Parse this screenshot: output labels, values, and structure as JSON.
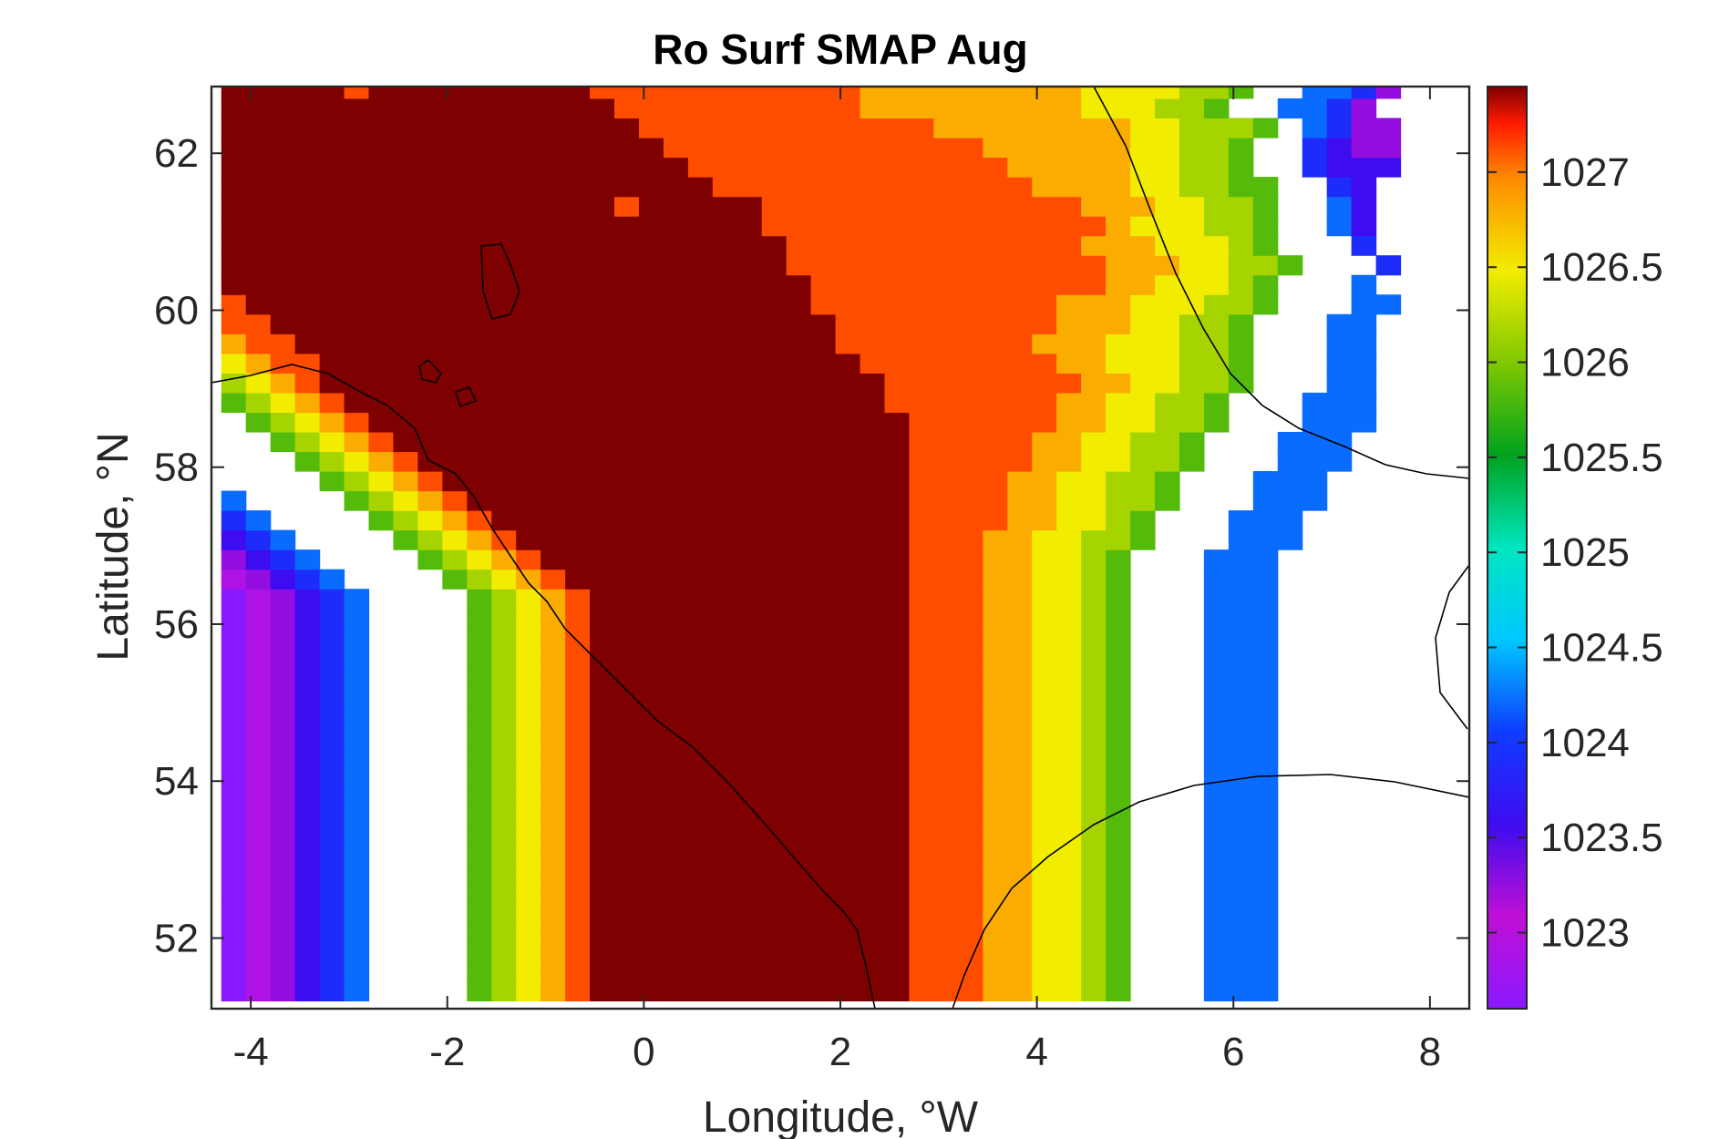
{
  "chart_data": {
    "type": "heatmap",
    "title": "Ro Surf SMAP Aug",
    "xlabel": "Longitude, °W",
    "ylabel": "Latitude, °N",
    "xlim": [
      -4.4,
      8.4
    ],
    "ylim": [
      51.1,
      62.85
    ],
    "xticks": [
      -4,
      -2,
      0,
      2,
      4,
      6,
      8
    ],
    "yticks": [
      52,
      54,
      56,
      58,
      60,
      62
    ],
    "colorbar": {
      "range": [
        1022.6,
        1027.45
      ],
      "ticks": [
        1023,
        1023.5,
        1024,
        1024.5,
        1025,
        1025.5,
        1026,
        1026.5,
        1027
      ]
    },
    "grid": {
      "lon_start": -4.3,
      "lat_start": 51.2,
      "step": 0.25
    },
    "gaps": "9876",
    "rows": [
      "FFFFFEFFFFFFFFFEEEEEEEEEEEDDDDDDDDDCCCCBBA765542",
      "FFFFFFFFFFFFFFFFEEEEEEEEEEDDDDDDDDDCCCBBA865542",
      "FFFFFFFFFFFFFFFFFEEEEEEEEEEEEDDDDDDDDCCBBBA85422",
      "FFFFFFFFFFFFFFFFFFEEEEEEEEEEEEEDDDDDDCCBBA964322",
      "FFFFFFFFFFFFFFFFFFFEEEEEEEEEEEEEDDDDDCCBBA964333",
      "FFFFFFFFFFFFFFFFFFFFEEEEEEEEEEEEEDDDDCCBBAA9643",
      "FFFFFFFFFFFFFFFFEFFFFFEEEEEEEEEEEEEDDDCCBBA9653",
      "FFFFFFFFFFFFFFFFFFFFFFEEEEEEEEEEEEEEDCCCBBA9653",
      "FFFFFFFFFFFFFFFFFFFFFFFEEEEEEEEEEEEDDDCCCBA9764",
      "FFFFFFFFFFFFFFFFFFFFFFFEEEEEEEEEEEEEDDDCCBBA9764",
      "FFFFFFFFFFFFFFFFFFFFFFFFEEEEEEEEEEEEDDCCCBA9765",
      "EFFFFFFFFFFFFFFFFFFFFFFFEEEEEEEEEEDDDCCCBBA97655",
      "EEFFFFFFFFFFFFFFFFFFFFFFFEEEEEEEEEDDDCCBBA97655",
      "DEEFFFFFFFFFFFFFFFFFFFFFFEEEEEEEEDDDCCCBBA97655",
      "CDEEFFFFFFFFFFFFFFFFFFFFFFEEEEEEEEDDCCCBBA976556",
      "BCDEFFFFFFFFFFFFFFFFFFFFFFFEEEEEEEEDDCCBBA986556",
      "ABCDEFFFFFFFFFFFFFFFFFFFFFFEEEEEEEDDCCBBA9865556",
      "9ABCDEFFFFFFFFFFFFFFFFFFFFFFEEEEEEDDCCBBA9865556",
      "89ABCDEFFFFFFFFFFFFFFFFFFFFFEEEEEDDCCBBA98655566",
      "789ABCDEFFFFFFFFFFFFFFFFFFFFEEEEEDDCCBBA98655566",
      "6789ABCDEFFFFFFFFFFFFFFFFFFFEEEEDDCCBBA986555666",
      "56789ABCDEFFFFFFFFFFFFFFFFFFEEEEDDCCBBA9865556666",
      "456789ABCDEFFFFFFFFFFFFFFFFFEEEEDDCCBA98655566666",
      "3456789ABCDEFFFFFFFFFFFFFFFFEEEDDCCBBA986555666666",
      "23456789ABCDEFFFFFFFFFFFFFFFEEEDDCCBA9865556666666",
      "123456789ABCDEFFFFFFFFFFFFFFEEEDDCCBA98655566666667",
      "0123456789ABCDEFFFFFFFFFFFFFEEEDDCCBA986555666666678",
      "0123456789ABCDEFFFFFFFFFFFFFEEEDDCCBA986555666666678",
      "0123456789ABCDEFFFFFFFFFFFFFEEEDDCCBA986555666666678",
      "0123456789ABCDEFFFFFFFFFFFFFEEEDDCCBA986555666666678",
      "0123456789ABCDEFFFFFFFFFFFFFEEEDDCCBA986555666666678",
      "0123456789ABCDEFFFFFFFFFFFFFEEEDDCCBA986555666666678",
      "0123456789ABCDEFFFFFFFFFFFFFEEEDDCCBA986555666666678",
      "0123456789ABCDEFFFFFFFFFFFFFEEEDDCCBA986555666666678",
      "0123456789ABCDEFFFFFFFFFFFFFEEEDDCCBA986555666666678",
      "0123456789ABCDEFFFFFFFFFFFFFEEEDDCCBA986555666666678",
      "0123456789ABCDEFFFFFFFFFFFFFEEEDDCCBA986555666666678",
      "0123456789ABCDEFFFFFFFFFFFFFEEEDDCCBA986555666666678",
      "0123456789ABCDEFFFFFFFFFFFFFEEEDDCCBA986555666666678",
      "0123456789ABCDEFFFFFFFFFFFFFEEEDDCCBA986555666666678",
      "0123456789ABCDEFFFFFFFFFFFFFEEEDDCCBA986555666666678",
      "0123456789ABCDEFFFFFFFFFFFFFEEEDDCCBA986555666666678",
      "0123456789ABCDEFFFFFFFFFFFFFEEEDDCCBA986555666666678",
      "0123456789ABCDEFFFFFFFFFFFFFEEEDDCCBA986555666666678",
      "0123456789ABCDEFFFFFFFFFFFFFEEEDDCCBA986555666666678",
      "0123456789ABCDEFFFFFFFFFFFFFEEEDDCCBA986555666666678",
      "0123456789ABCDEFFFFFFFFFFFFFEEEDDCCBA986555666666678"
    ]
  }
}
